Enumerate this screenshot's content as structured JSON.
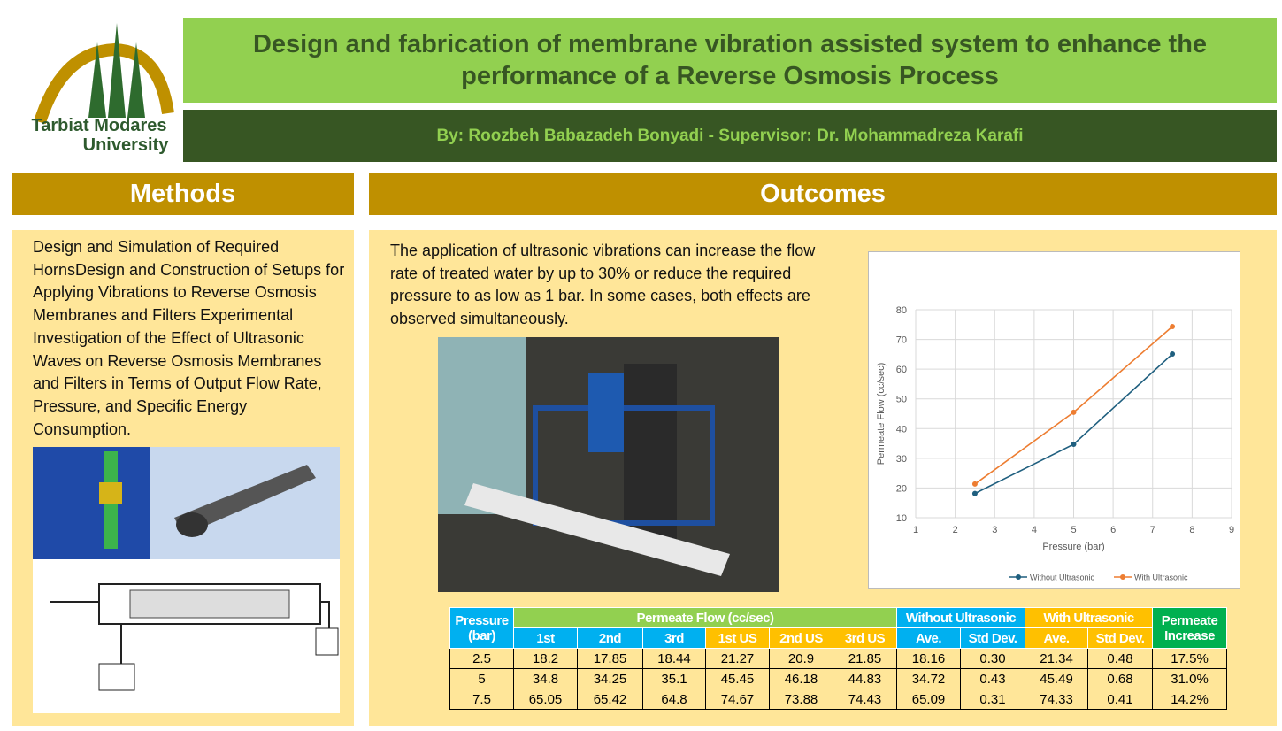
{
  "logo": {
    "line1": "Tarbiat Modares",
    "line2": "University"
  },
  "header": {
    "title": "Design and fabrication of membrane vibration assisted system to enhance the performance of a Reverse Osmosis Process",
    "byline": "By: Roozbeh Babazadeh Bonyadi -  Supervisor: Dr.  Mohammadreza Karafi"
  },
  "methods": {
    "heading": "Methods",
    "text": "Design and Simulation of Required HornsDesign and Construction of Setups for Applying Vibrations to Reverse Osmosis Membranes and Filters Experimental Investigation of the Effect of Ultrasonic Waves on Reverse Osmosis Membranes and Filters in Terms of Output Flow Rate, Pressure, and Specific Energy Consumption."
  },
  "outcomes": {
    "heading": "Outcomes",
    "text": "The application of ultrasonic vibrations can increase the flow rate of treated water by up to 30% or reduce the required pressure to as low as 1 bar. In some cases, both effects are observed simultaneously."
  },
  "chart": {
    "type": "line",
    "x_label": "Pressure (bar)",
    "y_label": "Permeate Flow (cc/sec)",
    "x": [
      2.5,
      5,
      7.5
    ],
    "series": [
      {
        "name": "Without Ultrasonic",
        "color": "#1f5f7f",
        "values": [
          18.16,
          34.72,
          65.09
        ]
      },
      {
        "name": "With Ultrasonic",
        "color": "#ed7d31",
        "values": [
          21.34,
          45.49,
          74.33
        ]
      }
    ],
    "xlim": [
      1,
      9
    ],
    "xticks": [
      1,
      2,
      3,
      4,
      5,
      6,
      7,
      8,
      9
    ],
    "ylim": [
      10,
      80
    ],
    "yticks": [
      10,
      20,
      30,
      40,
      50,
      60,
      70,
      80
    ],
    "grid": true,
    "legend": "bottom"
  },
  "table": {
    "header1": [
      "Pressure (bar)",
      "Permeate Flow (cc/sec)",
      "Without Ultrasonic",
      "With Ultrasonic",
      "Permeate Increase"
    ],
    "header2": [
      "1st",
      "2nd",
      "3rd",
      "1st US",
      "2nd US",
      "3rd US",
      "Ave.",
      "Std Dev.",
      "Ave.",
      "Std Dev."
    ],
    "rows": [
      [
        "2.5",
        "18.2",
        "17.85",
        "18.44",
        "21.27",
        "20.9",
        "21.85",
        "18.16",
        "0.30",
        "21.34",
        "0.48",
        "17.5%"
      ],
      [
        "5",
        "34.8",
        "34.25",
        "35.1",
        "45.45",
        "46.18",
        "44.83",
        "34.72",
        "0.43",
        "45.49",
        "0.68",
        "31.0%"
      ],
      [
        "7.5",
        "65.05",
        "65.42",
        "64.8",
        "74.67",
        "73.88",
        "74.43",
        "65.09",
        "0.31",
        "74.33",
        "0.41",
        "14.2%"
      ]
    ]
  }
}
